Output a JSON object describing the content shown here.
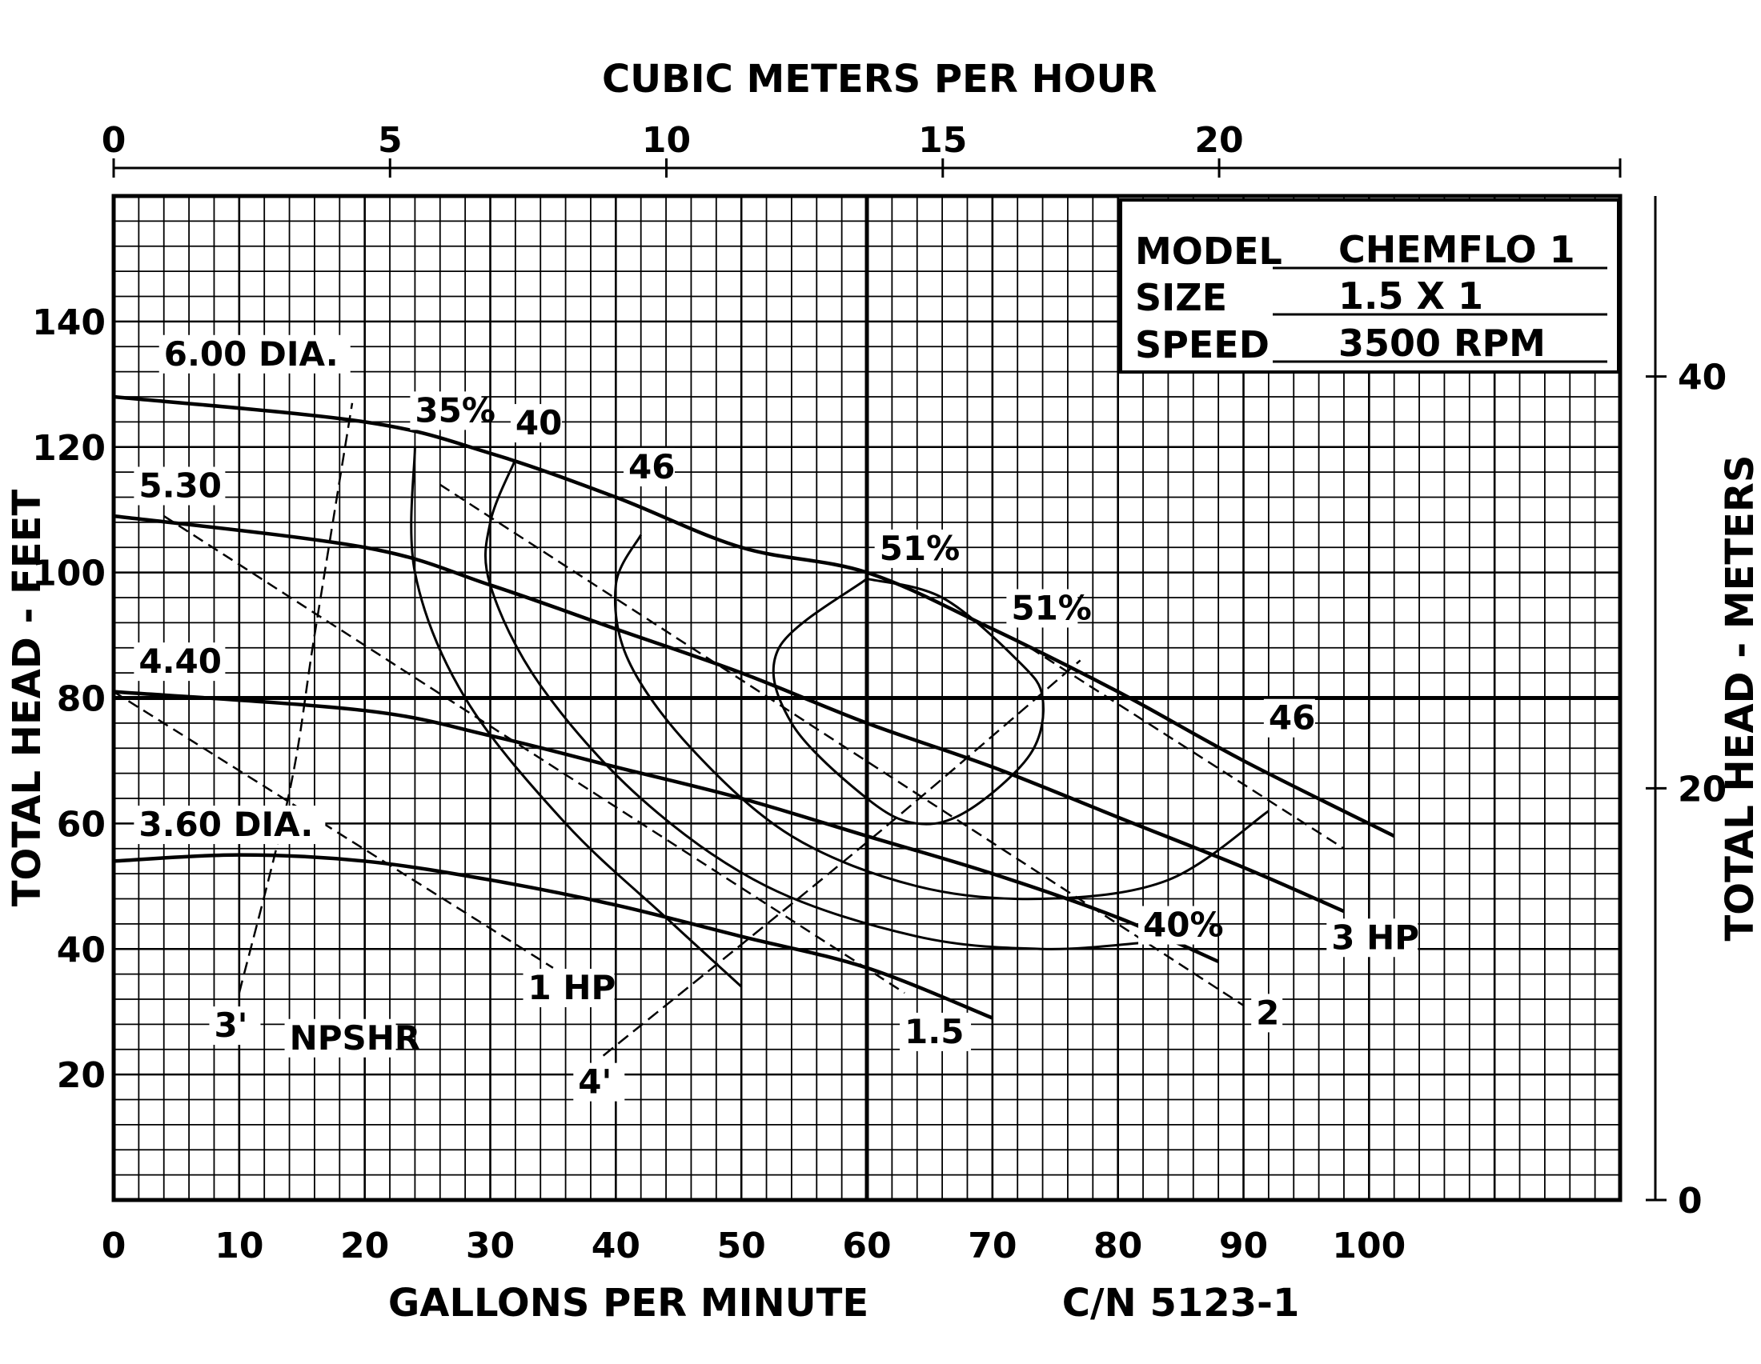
{
  "chart_data": {
    "type": "line",
    "axes": {
      "x_bottom": {
        "label": "GALLONS PER MINUTE",
        "range": [
          0,
          120
        ],
        "ticks": [
          0,
          10,
          20,
          30,
          40,
          50,
          60,
          70,
          80,
          90,
          100
        ],
        "tick_labels": [
          "0",
          "10",
          "20",
          "30",
          "40",
          "50",
          "60",
          "70",
          "80",
          "90",
          "100"
        ]
      },
      "x_top": {
        "label": "CUBIC METERS PER HOUR",
        "ticks": [
          0,
          5,
          10,
          15,
          20
        ],
        "tick_labels": [
          "0",
          "5",
          "10",
          "15",
          "20"
        ]
      },
      "y_left": {
        "label": "TOTAL HEAD - FEET",
        "range": [
          0,
          160
        ],
        "ticks": [
          20,
          40,
          60,
          80,
          100,
          120,
          140
        ],
        "tick_labels": [
          "20",
          "40",
          "60",
          "80",
          "100",
          "120",
          "140"
        ]
      },
      "y_right": {
        "label": "TOTAL HEAD - METERS",
        "ticks": [
          0,
          20,
          40
        ],
        "tick_labels": [
          "0",
          "20",
          "40"
        ]
      },
      "grid": true
    },
    "info_box": {
      "rows": [
        {
          "key": "MODEL",
          "value": "CHEMFLO 1"
        },
        {
          "key": "SIZE",
          "value": "1.5 X 1"
        },
        {
          "key": "SPEED",
          "value": "3500 RPM"
        }
      ]
    },
    "catalog_number": "C/N 5123-1",
    "impeller_curves": [
      {
        "name": "6.00 DIA.",
        "points": [
          [
            0,
            128
          ],
          [
            20,
            124
          ],
          [
            30,
            119
          ],
          [
            40,
            112
          ],
          [
            50,
            104
          ],
          [
            60,
            100
          ],
          [
            70,
            91
          ],
          [
            80,
            81
          ],
          [
            90,
            70
          ],
          [
            102,
            58
          ]
        ]
      },
      {
        "name": "5.30",
        "points": [
          [
            0,
            109
          ],
          [
            20,
            104
          ],
          [
            30,
            98
          ],
          [
            40,
            91
          ],
          [
            50,
            84
          ],
          [
            60,
            76
          ],
          [
            70,
            69
          ],
          [
            80,
            61
          ],
          [
            90,
            53
          ],
          [
            98,
            46
          ]
        ]
      },
      {
        "name": "4.40",
        "points": [
          [
            0,
            81
          ],
          [
            20,
            78
          ],
          [
            30,
            74
          ],
          [
            40,
            69
          ],
          [
            50,
            64
          ],
          [
            60,
            58
          ],
          [
            70,
            52
          ],
          [
            80,
            45
          ],
          [
            88,
            38
          ]
        ]
      },
      {
        "name": "3.60 DIA.",
        "points": [
          [
            0,
            54
          ],
          [
            10,
            55
          ],
          [
            20,
            54
          ],
          [
            30,
            51
          ],
          [
            40,
            47
          ],
          [
            50,
            42
          ],
          [
            60,
            37
          ],
          [
            70,
            29
          ]
        ]
      }
    ],
    "efficiency_curves": [
      {
        "name": "35%",
        "points": [
          [
            24,
            120
          ],
          [
            24,
            100
          ],
          [
            28,
            80
          ],
          [
            36,
            60
          ],
          [
            44,
            45
          ],
          [
            50,
            34
          ]
        ]
      },
      {
        "name": "40",
        "points": [
          [
            32,
            118
          ],
          [
            30,
            108
          ],
          [
            30,
            98
          ],
          [
            34,
            82
          ],
          [
            42,
            64
          ],
          [
            52,
            50
          ],
          [
            64,
            42
          ],
          [
            74,
            40
          ],
          [
            82,
            41
          ]
        ]
      },
      {
        "name": "40%",
        "points": [
          [
            82,
            41
          ]
        ]
      },
      {
        "name": "46",
        "points": [
          [
            42,
            106
          ],
          [
            40,
            98
          ],
          [
            41,
            86
          ],
          [
            46,
            72
          ],
          [
            54,
            58
          ],
          [
            64,
            50
          ],
          [
            74,
            48
          ],
          [
            84,
            51
          ],
          [
            92,
            62
          ]
        ]
      },
      {
        "name": "51%",
        "points": [
          [
            60,
            99
          ],
          [
            53,
            88
          ],
          [
            54,
            76
          ],
          [
            60,
            64
          ],
          [
            64,
            60
          ],
          [
            68,
            62
          ],
          [
            73,
            71
          ],
          [
            74,
            80
          ],
          [
            72,
            86
          ],
          [
            66,
            96
          ],
          [
            60,
            99
          ]
        ]
      }
    ],
    "power_curves": [
      {
        "name": "1 HP",
        "points": [
          [
            0,
            81
          ],
          [
            35,
            37
          ]
        ]
      },
      {
        "name": "1.5",
        "points": [
          [
            4,
            109
          ],
          [
            63,
            33
          ]
        ]
      },
      {
        "name": "2",
        "points": [
          [
            26,
            114
          ],
          [
            90,
            31
          ]
        ]
      },
      {
        "name": "3 HP",
        "points": [
          [
            73,
            88
          ],
          [
            98,
            56
          ]
        ]
      }
    ],
    "npshr_curves": [
      {
        "name": "3'",
        "points": [
          [
            10,
            33
          ],
          [
            14,
            65
          ],
          [
            16,
            90
          ],
          [
            19,
            127
          ]
        ]
      },
      {
        "name": "4'",
        "points": [
          [
            39,
            23
          ],
          [
            60,
            57
          ],
          [
            77,
            86
          ]
        ]
      }
    ],
    "annotations": [
      "NPSHR"
    ]
  }
}
